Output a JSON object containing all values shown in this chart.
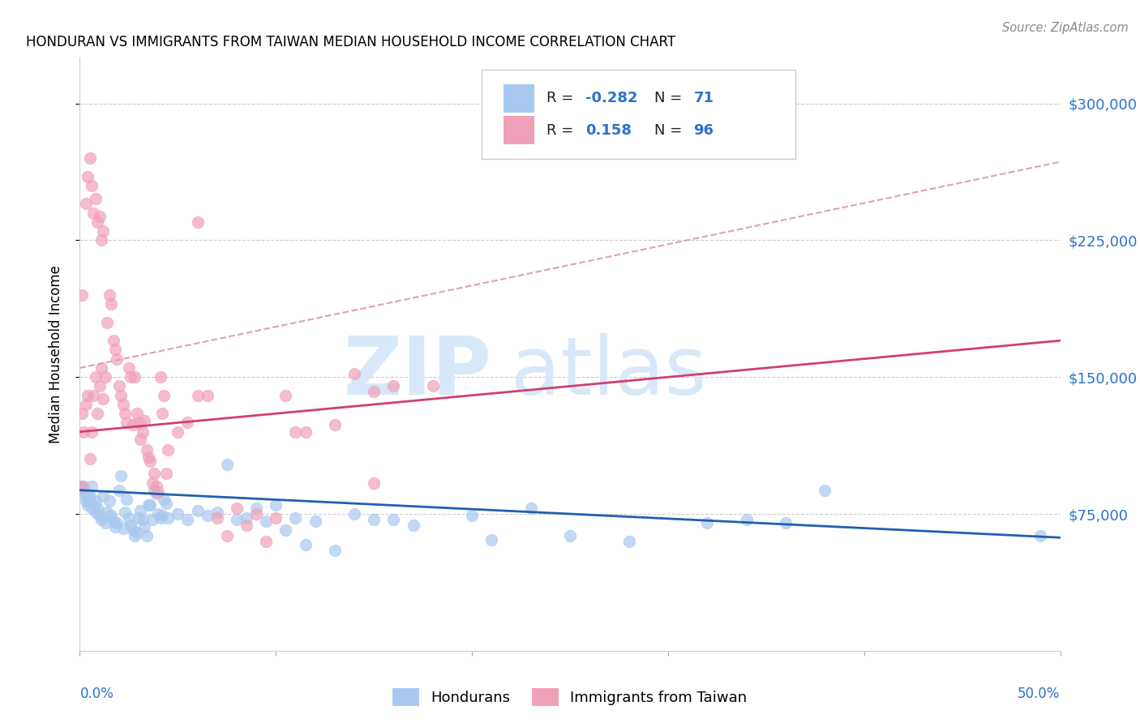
{
  "title": "HONDURAN VS IMMIGRANTS FROM TAIWAN MEDIAN HOUSEHOLD INCOME CORRELATION CHART",
  "source": "Source: ZipAtlas.com",
  "ylabel": "Median Household Income",
  "y_ticks": [
    75000,
    150000,
    225000,
    300000
  ],
  "y_tick_labels": [
    "$75,000",
    "$150,000",
    "$225,000",
    "$300,000"
  ],
  "x_range": [
    0,
    0.5
  ],
  "y_range": [
    0,
    325000
  ],
  "legend_label1": "Hondurans",
  "legend_label2": "Immigrants from Taiwan",
  "blue_color": "#a8c8f0",
  "pink_color": "#f0a0b8",
  "blue_line_color": "#2060b0",
  "pink_line_color": "#d04070",
  "dashed_line_color": "#e0a0b8",
  "watermark_zip": "ZIP",
  "watermark_atlas": "atlas",
  "watermark_color": "#d8e8f8",
  "background_color": "#ffffff",
  "grid_color": "#cccccc",
  "blue_dots": [
    [
      0.002,
      88000
    ],
    [
      0.003,
      82000
    ],
    [
      0.004,
      86000
    ],
    [
      0.005,
      85000
    ],
    [
      0.006,
      90000
    ],
    [
      0.007,
      80000
    ],
    [
      0.008,
      76000
    ],
    [
      0.009,
      78000
    ],
    [
      0.01,
      74000
    ],
    [
      0.011,
      72000
    ],
    [
      0.012,
      85000
    ],
    [
      0.013,
      70000
    ],
    [
      0.014,
      76000
    ],
    [
      0.015,
      82000
    ],
    [
      0.016,
      74000
    ],
    [
      0.017,
      71000
    ],
    [
      0.018,
      68000
    ],
    [
      0.019,
      70000
    ],
    [
      0.02,
      88000
    ],
    [
      0.021,
      96000
    ],
    [
      0.022,
      67000
    ],
    [
      0.023,
      76000
    ],
    [
      0.024,
      83000
    ],
    [
      0.025,
      73000
    ],
    [
      0.026,
      69000
    ],
    [
      0.027,
      66000
    ],
    [
      0.028,
      63000
    ],
    [
      0.029,
      65000
    ],
    [
      0.03,
      73000
    ],
    [
      0.031,
      77000
    ],
    [
      0.032,
      72000
    ],
    [
      0.033,
      68000
    ],
    [
      0.034,
      63000
    ],
    [
      0.035,
      80000
    ],
    [
      0.036,
      80000
    ],
    [
      0.037,
      72000
    ],
    [
      0.038,
      88000
    ],
    [
      0.039,
      86000
    ],
    [
      0.04,
      75000
    ],
    [
      0.041,
      73000
    ],
    [
      0.042,
      74000
    ],
    [
      0.043,
      83000
    ],
    [
      0.044,
      81000
    ],
    [
      0.045,
      73000
    ],
    [
      0.05,
      75000
    ],
    [
      0.055,
      72000
    ],
    [
      0.06,
      77000
    ],
    [
      0.065,
      74000
    ],
    [
      0.07,
      76000
    ],
    [
      0.075,
      102000
    ],
    [
      0.08,
      72000
    ],
    [
      0.085,
      73000
    ],
    [
      0.09,
      78000
    ],
    [
      0.095,
      71000
    ],
    [
      0.1,
      80000
    ],
    [
      0.105,
      66000
    ],
    [
      0.11,
      73000
    ],
    [
      0.115,
      58000
    ],
    [
      0.12,
      71000
    ],
    [
      0.13,
      55000
    ],
    [
      0.14,
      75000
    ],
    [
      0.15,
      72000
    ],
    [
      0.16,
      72000
    ],
    [
      0.17,
      69000
    ],
    [
      0.2,
      74000
    ],
    [
      0.21,
      61000
    ],
    [
      0.23,
      78000
    ],
    [
      0.25,
      63000
    ],
    [
      0.28,
      60000
    ],
    [
      0.32,
      70000
    ],
    [
      0.34,
      72000
    ],
    [
      0.36,
      70000
    ],
    [
      0.38,
      88000
    ],
    [
      0.49,
      63000
    ],
    [
      0.001,
      90000
    ],
    [
      0.001,
      88000
    ],
    [
      0.002,
      90000
    ],
    [
      0.003,
      85000
    ],
    [
      0.004,
      80000
    ],
    [
      0.005,
      82000
    ],
    [
      0.006,
      78000
    ],
    [
      0.008,
      82000
    ]
  ],
  "pink_dots": [
    [
      0.001,
      90000
    ],
    [
      0.001,
      130000
    ],
    [
      0.002,
      120000
    ],
    [
      0.003,
      135000
    ],
    [
      0.004,
      140000
    ],
    [
      0.005,
      105000
    ],
    [
      0.006,
      120000
    ],
    [
      0.007,
      140000
    ],
    [
      0.008,
      150000
    ],
    [
      0.009,
      130000
    ],
    [
      0.01,
      145000
    ],
    [
      0.011,
      155000
    ],
    [
      0.012,
      138000
    ],
    [
      0.013,
      150000
    ],
    [
      0.014,
      180000
    ],
    [
      0.015,
      195000
    ],
    [
      0.016,
      190000
    ],
    [
      0.017,
      170000
    ],
    [
      0.018,
      165000
    ],
    [
      0.019,
      160000
    ],
    [
      0.02,
      145000
    ],
    [
      0.021,
      140000
    ],
    [
      0.022,
      135000
    ],
    [
      0.023,
      130000
    ],
    [
      0.024,
      125000
    ],
    [
      0.025,
      155000
    ],
    [
      0.026,
      150000
    ],
    [
      0.027,
      124000
    ],
    [
      0.028,
      150000
    ],
    [
      0.029,
      130000
    ],
    [
      0.03,
      125000
    ],
    [
      0.031,
      116000
    ],
    [
      0.032,
      120000
    ],
    [
      0.033,
      126000
    ],
    [
      0.034,
      110000
    ],
    [
      0.035,
      106000
    ],
    [
      0.036,
      104000
    ],
    [
      0.037,
      92000
    ],
    [
      0.038,
      97000
    ],
    [
      0.039,
      90000
    ],
    [
      0.04,
      87000
    ],
    [
      0.041,
      150000
    ],
    [
      0.042,
      130000
    ],
    [
      0.043,
      140000
    ],
    [
      0.044,
      97000
    ],
    [
      0.045,
      110000
    ],
    [
      0.05,
      120000
    ],
    [
      0.055,
      125000
    ],
    [
      0.06,
      140000
    ],
    [
      0.065,
      140000
    ],
    [
      0.07,
      73000
    ],
    [
      0.075,
      63000
    ],
    [
      0.08,
      78000
    ],
    [
      0.085,
      69000
    ],
    [
      0.09,
      75000
    ],
    [
      0.095,
      60000
    ],
    [
      0.1,
      73000
    ],
    [
      0.105,
      140000
    ],
    [
      0.11,
      120000
    ],
    [
      0.115,
      120000
    ],
    [
      0.13,
      124000
    ],
    [
      0.003,
      245000
    ],
    [
      0.004,
      260000
    ],
    [
      0.005,
      270000
    ],
    [
      0.006,
      255000
    ],
    [
      0.007,
      240000
    ],
    [
      0.008,
      248000
    ],
    [
      0.009,
      235000
    ],
    [
      0.01,
      238000
    ],
    [
      0.011,
      225000
    ],
    [
      0.012,
      230000
    ],
    [
      0.001,
      195000
    ],
    [
      0.06,
      235000
    ],
    [
      0.14,
      152000
    ],
    [
      0.15,
      142000
    ],
    [
      0.16,
      145000
    ],
    [
      0.18,
      145000
    ],
    [
      0.15,
      92000
    ]
  ],
  "blue_trendline": {
    "x": [
      0.0,
      0.5
    ],
    "y": [
      88000,
      62000
    ]
  },
  "pink_trendline": {
    "x": [
      0.0,
      0.5
    ],
    "y": [
      120000,
      170000
    ]
  },
  "dashed_trendline": {
    "x": [
      0.0,
      0.5
    ],
    "y": [
      155000,
      268000
    ]
  }
}
